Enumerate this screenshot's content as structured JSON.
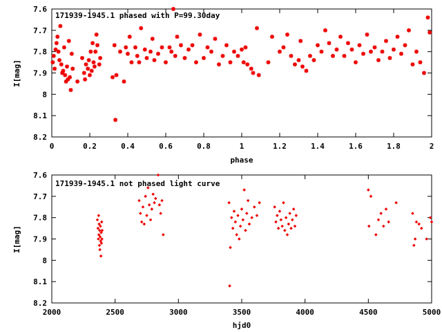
{
  "chart_data": [
    {
      "type": "scatter",
      "title": "171939-1945.1 phased with P=99.30day",
      "xlabel": "phase",
      "ylabel": "I[mag]",
      "xlim": [
        0,
        2
      ],
      "ylim": [
        7.6,
        8.2
      ],
      "y_inverted": true,
      "grid": false,
      "marker": "star",
      "color": "#ee0000",
      "x_ticks": [
        "0",
        "0.2",
        "0.4",
        "0.6",
        "0.8",
        "1",
        "1.2",
        "1.4",
        "1.6",
        "1.8",
        "2"
      ],
      "y_ticks": [
        "7.6",
        "7.7",
        "7.8",
        "7.9",
        "8",
        "8.1",
        "8.2"
      ],
      "points": [
        [
          0.005,
          7.85
        ],
        [
          0.01,
          7.82
        ],
        [
          0.015,
          7.88
        ],
        [
          0.02,
          7.79
        ],
        [
          0.025,
          7.76
        ],
        [
          0.03,
          7.73
        ],
        [
          0.035,
          7.8
        ],
        [
          0.04,
          7.84
        ],
        [
          0.045,
          7.68
        ],
        [
          0.05,
          7.86
        ],
        [
          0.055,
          7.9
        ],
        [
          0.06,
          7.89
        ],
        [
          0.065,
          7.78
        ],
        [
          0.07,
          7.91
        ],
        [
          0.075,
          7.94
        ],
        [
          0.08,
          7.87
        ],
        [
          0.085,
          7.93
        ],
        [
          0.09,
          7.75
        ],
        [
          0.095,
          7.92
        ],
        [
          0.1,
          7.98
        ],
        [
          0.105,
          7.81
        ],
        [
          0.11,
          7.88
        ],
        [
          0.135,
          7.94
        ],
        [
          0.16,
          7.83
        ],
        [
          0.17,
          7.9
        ],
        [
          0.175,
          7.93
        ],
        [
          0.18,
          7.86
        ],
        [
          0.19,
          7.88
        ],
        [
          0.195,
          7.84
        ],
        [
          0.2,
          7.91
        ],
        [
          0.205,
          7.8
        ],
        [
          0.21,
          7.89
        ],
        [
          0.215,
          7.76
        ],
        [
          0.22,
          7.85
        ],
        [
          0.225,
          7.87
        ],
        [
          0.23,
          7.8
        ],
        [
          0.235,
          7.72
        ],
        [
          0.24,
          7.77
        ],
        [
          0.25,
          7.86
        ],
        [
          0.255,
          7.83
        ],
        [
          0.32,
          7.92
        ],
        [
          0.33,
          7.77
        ],
        [
          0.335,
          8.12
        ],
        [
          0.34,
          7.91
        ],
        [
          0.36,
          7.8
        ],
        [
          0.38,
          7.94
        ],
        [
          0.39,
          7.78
        ],
        [
          0.4,
          7.81
        ],
        [
          0.41,
          7.73
        ],
        [
          0.42,
          7.85
        ],
        [
          0.44,
          7.78
        ],
        [
          0.45,
          7.82
        ],
        [
          0.46,
          7.85
        ],
        [
          0.47,
          7.69
        ],
        [
          0.49,
          7.79
        ],
        [
          0.5,
          7.83
        ],
        [
          0.52,
          7.8
        ],
        [
          0.53,
          7.74
        ],
        [
          0.54,
          7.84
        ],
        [
          0.56,
          7.81
        ],
        [
          0.58,
          7.78
        ],
        [
          0.6,
          7.85
        ],
        [
          0.62,
          7.78
        ],
        [
          0.63,
          7.8
        ],
        [
          0.64,
          7.6
        ],
        [
          0.65,
          7.82
        ],
        [
          0.66,
          7.73
        ],
        [
          0.68,
          7.77
        ],
        [
          0.7,
          7.83
        ],
        [
          0.72,
          7.79
        ],
        [
          0.74,
          7.77
        ],
        [
          0.76,
          7.85
        ],
        [
          0.78,
          7.72
        ],
        [
          0.8,
          7.83
        ],
        [
          0.82,
          7.78
        ],
        [
          0.84,
          7.8
        ],
        [
          0.86,
          7.74
        ],
        [
          0.88,
          7.86
        ],
        [
          0.9,
          7.82
        ],
        [
          0.92,
          7.77
        ],
        [
          0.94,
          7.85
        ],
        [
          0.96,
          7.8
        ],
        [
          0.98,
          7.82
        ],
        [
          1.0,
          7.79
        ],
        [
          1.01,
          7.85
        ],
        [
          1.02,
          7.78
        ],
        [
          1.03,
          7.86
        ],
        [
          1.05,
          7.88
        ],
        [
          1.06,
          7.9
        ],
        [
          1.08,
          7.69
        ],
        [
          1.09,
          7.91
        ],
        [
          1.14,
          7.85
        ],
        [
          1.16,
          7.73
        ],
        [
          1.2,
          7.8
        ],
        [
          1.22,
          7.78
        ],
        [
          1.24,
          7.72
        ],
        [
          1.26,
          7.82
        ],
        [
          1.28,
          7.86
        ],
        [
          1.3,
          7.84
        ],
        [
          1.31,
          7.75
        ],
        [
          1.32,
          7.87
        ],
        [
          1.34,
          7.89
        ],
        [
          1.36,
          7.82
        ],
        [
          1.38,
          7.84
        ],
        [
          1.4,
          7.77
        ],
        [
          1.42,
          7.8
        ],
        [
          1.44,
          7.7
        ],
        [
          1.46,
          7.76
        ],
        [
          1.48,
          7.82
        ],
        [
          1.5,
          7.79
        ],
        [
          1.52,
          7.73
        ],
        [
          1.54,
          7.82
        ],
        [
          1.56,
          7.76
        ],
        [
          1.58,
          7.79
        ],
        [
          1.6,
          7.85
        ],
        [
          1.62,
          7.77
        ],
        [
          1.64,
          7.81
        ],
        [
          1.66,
          7.72
        ],
        [
          1.68,
          7.8
        ],
        [
          1.7,
          7.78
        ],
        [
          1.72,
          7.84
        ],
        [
          1.74,
          7.8
        ],
        [
          1.76,
          7.75
        ],
        [
          1.78,
          7.83
        ],
        [
          1.8,
          7.79
        ],
        [
          1.82,
          7.73
        ],
        [
          1.84,
          7.81
        ],
        [
          1.86,
          7.77
        ],
        [
          1.88,
          7.7
        ],
        [
          1.9,
          7.86
        ],
        [
          1.92,
          7.8
        ],
        [
          1.94,
          7.85
        ],
        [
          1.96,
          7.9
        ],
        [
          1.98,
          7.64
        ],
        [
          1.99,
          7.71
        ]
      ]
    },
    {
      "type": "scatter",
      "title": "171939-1945.1 not phased light curve",
      "xlabel": "hjd0",
      "ylabel": "I[mag]",
      "xlim": [
        2000,
        5000
      ],
      "ylim": [
        7.6,
        8.2
      ],
      "y_inverted": true,
      "grid": false,
      "marker": "diamond",
      "color": "#ee0000",
      "x_ticks": [
        "2000",
        "2500",
        "3000",
        "3500",
        "4000",
        "4500",
        "5000"
      ],
      "y_ticks": [
        "7.6",
        "7.7",
        "7.8",
        "7.9",
        "8",
        "8.1",
        "8.2"
      ],
      "points": [
        [
          2360,
          7.81
        ],
        [
          2365,
          7.85
        ],
        [
          2368,
          7.9
        ],
        [
          2370,
          7.79
        ],
        [
          2372,
          7.88
        ],
        [
          2374,
          7.83
        ],
        [
          2376,
          7.93
        ],
        [
          2378,
          7.86
        ],
        [
          2380,
          7.95
        ],
        [
          2382,
          7.89
        ],
        [
          2384,
          7.84
        ],
        [
          2386,
          7.91
        ],
        [
          2388,
          7.98
        ],
        [
          2390,
          7.87
        ],
        [
          2392,
          7.92
        ],
        [
          2394,
          7.82
        ],
        [
          2396,
          7.9
        ],
        [
          2398,
          7.86
        ],
        [
          2690,
          7.72
        ],
        [
          2700,
          7.78
        ],
        [
          2710,
          7.82
        ],
        [
          2720,
          7.75
        ],
        [
          2730,
          7.83
        ],
        [
          2740,
          7.7
        ],
        [
          2750,
          7.79
        ],
        [
          2760,
          7.66
        ],
        [
          2770,
          7.74
        ],
        [
          2780,
          7.81
        ],
        [
          2790,
          7.76
        ],
        [
          2800,
          7.69
        ],
        [
          2810,
          7.73
        ],
        [
          2820,
          7.71
        ],
        [
          2840,
          7.6
        ],
        [
          2850,
          7.74
        ],
        [
          2860,
          7.78
        ],
        [
          2870,
          7.72
        ],
        [
          2880,
          7.88
        ],
        [
          3400,
          7.73
        ],
        [
          3405,
          8.12
        ],
        [
          3410,
          7.94
        ],
        [
          3420,
          7.8
        ],
        [
          3430,
          7.85
        ],
        [
          3440,
          7.77
        ],
        [
          3450,
          7.82
        ],
        [
          3460,
          7.88
        ],
        [
          3470,
          7.79
        ],
        [
          3480,
          7.9
        ],
        [
          3490,
          7.84
        ],
        [
          3500,
          7.76
        ],
        [
          3510,
          7.81
        ],
        [
          3520,
          7.67
        ],
        [
          3530,
          7.86
        ],
        [
          3540,
          7.78
        ],
        [
          3550,
          7.72
        ],
        [
          3560,
          7.83
        ],
        [
          3580,
          7.8
        ],
        [
          3600,
          7.75
        ],
        [
          3620,
          7.79
        ],
        [
          3640,
          7.73
        ],
        [
          3760,
          7.75
        ],
        [
          3770,
          7.82
        ],
        [
          3780,
          7.79
        ],
        [
          3790,
          7.85
        ],
        [
          3800,
          7.77
        ],
        [
          3810,
          7.81
        ],
        [
          3820,
          7.84
        ],
        [
          3830,
          7.73
        ],
        [
          3840,
          7.86
        ],
        [
          3850,
          7.8
        ],
        [
          3860,
          7.88
        ],
        [
          3870,
          7.83
        ],
        [
          3880,
          7.78
        ],
        [
          3890,
          7.85
        ],
        [
          3900,
          7.81
        ],
        [
          3910,
          7.76
        ],
        [
          3920,
          7.84
        ],
        [
          3930,
          7.79
        ],
        [
          4500,
          7.67
        ],
        [
          4505,
          7.84
        ],
        [
          4520,
          7.7
        ],
        [
          4560,
          7.88
        ],
        [
          4580,
          7.81
        ],
        [
          4600,
          7.78
        ],
        [
          4620,
          7.84
        ],
        [
          4640,
          7.76
        ],
        [
          4660,
          7.82
        ],
        [
          4720,
          7.73
        ],
        [
          4850,
          7.78
        ],
        [
          4860,
          7.93
        ],
        [
          4870,
          7.9
        ],
        [
          4880,
          7.82
        ],
        [
          4900,
          7.83
        ],
        [
          4920,
          7.85
        ],
        [
          4960,
          7.9
        ],
        [
          4990,
          7.8
        ],
        [
          5000,
          7.82
        ]
      ]
    }
  ]
}
